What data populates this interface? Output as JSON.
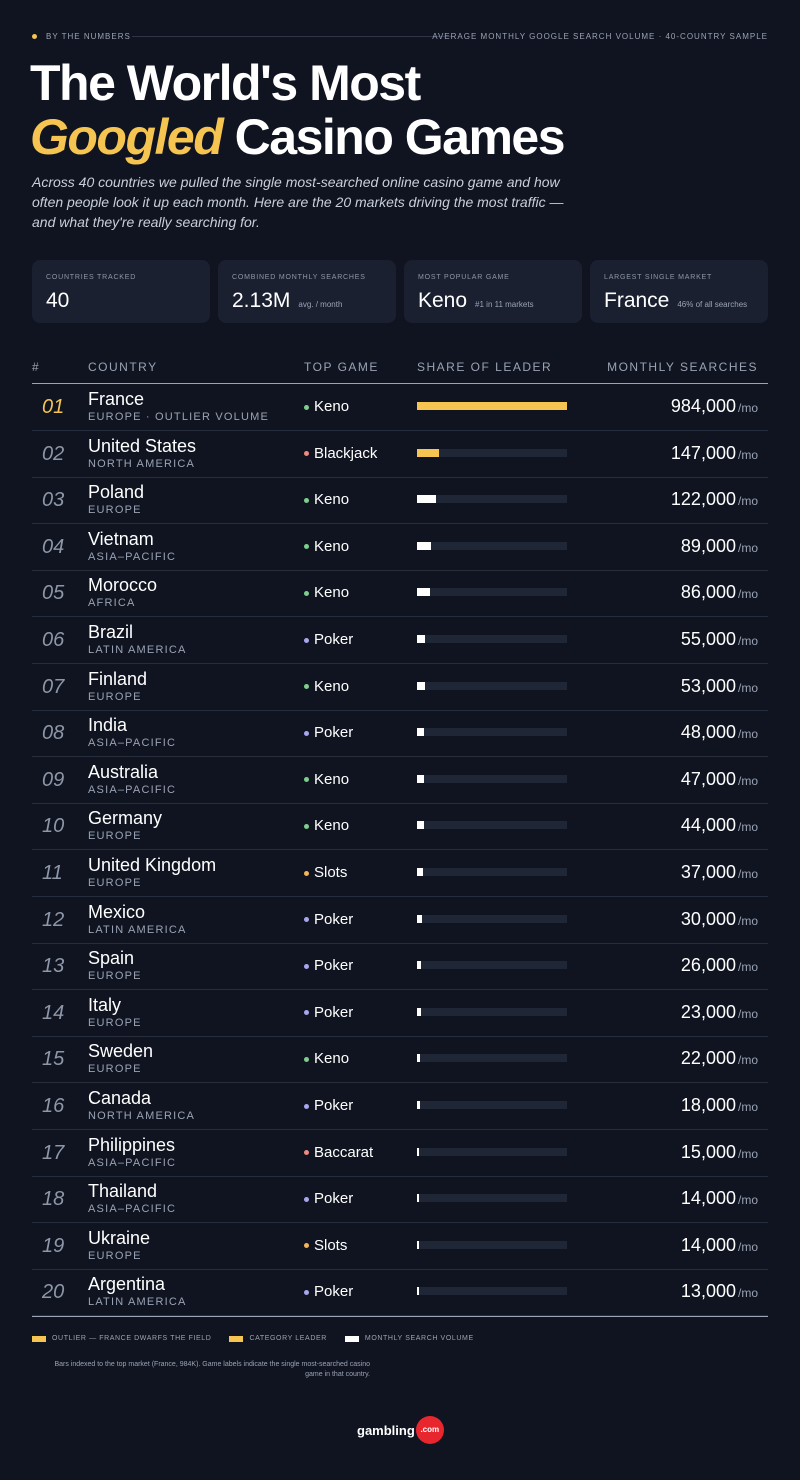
{
  "header": {
    "kicker": "BY THE NUMBERS",
    "meta": "AVERAGE MONTHLY GOOGLE SEARCH VOLUME · 40-COUNTRY SAMPLE"
  },
  "title": {
    "line1": "The World's Most",
    "highlight": "Googled",
    "rest": "Casino Games"
  },
  "description": "Across 40 countries we pulled the single most-searched online casino game and how often people look it up each month. Here are the 20 markets driving the most traffic — and what they're really searching for.",
  "stats": [
    {
      "label": "COUNTRIES TRACKED",
      "value": "40",
      "sub": ""
    },
    {
      "label": "COMBINED MONTHLY SEARCHES",
      "value": "2.13M",
      "sub": "avg. / month"
    },
    {
      "label": "MOST POPULAR GAME",
      "value": "Keno",
      "sub": "#1 in 11 markets"
    },
    {
      "label": "LARGEST SINGLE MARKET",
      "value": "France",
      "sub": "46% of all searches"
    }
  ],
  "table": {
    "headers": [
      "#",
      "COUNTRY",
      "TOP GAME",
      "SHARE OF LEADER",
      "MONTHLY SEARCHES"
    ],
    "unit": "/mo",
    "game_colors": {
      "Keno": "#7fcf8c",
      "Blackjack": "#f08a80",
      "Baccarat": "#f08a80",
      "Poker": "#a9a6f0",
      "Slots": "#f3b45a"
    },
    "rows": [
      {
        "rank": "01",
        "country": "France",
        "region": "EUROPE · OUTLIER VOLUME",
        "game": "Keno",
        "searches": 984000,
        "label": "984,000",
        "bar_color": "#f5c451"
      },
      {
        "rank": "02",
        "country": "United States",
        "region": "NORTH AMERICA",
        "game": "Blackjack",
        "searches": 147000,
        "label": "147,000",
        "bar_color": "#f5c451"
      },
      {
        "rank": "03",
        "country": "Poland",
        "region": "EUROPE",
        "game": "Keno",
        "searches": 122000,
        "label": "122,000",
        "bar_color": "#ffffff"
      },
      {
        "rank": "04",
        "country": "Vietnam",
        "region": "ASIA–PACIFIC",
        "game": "Keno",
        "searches": 89000,
        "label": "89,000",
        "bar_color": "#ffffff"
      },
      {
        "rank": "05",
        "country": "Morocco",
        "region": "AFRICA",
        "game": "Keno",
        "searches": 86000,
        "label": "86,000",
        "bar_color": "#ffffff"
      },
      {
        "rank": "06",
        "country": "Brazil",
        "region": "LATIN AMERICA",
        "game": "Poker",
        "searches": 55000,
        "label": "55,000",
        "bar_color": "#ffffff"
      },
      {
        "rank": "07",
        "country": "Finland",
        "region": "EUROPE",
        "game": "Keno",
        "searches": 53000,
        "label": "53,000",
        "bar_color": "#ffffff"
      },
      {
        "rank": "08",
        "country": "India",
        "region": "ASIA–PACIFIC",
        "game": "Poker",
        "searches": 48000,
        "label": "48,000",
        "bar_color": "#ffffff"
      },
      {
        "rank": "09",
        "country": "Australia",
        "region": "ASIA–PACIFIC",
        "game": "Keno",
        "searches": 47000,
        "label": "47,000",
        "bar_color": "#ffffff"
      },
      {
        "rank": "10",
        "country": "Germany",
        "region": "EUROPE",
        "game": "Keno",
        "searches": 44000,
        "label": "44,000",
        "bar_color": "#ffffff"
      },
      {
        "rank": "11",
        "country": "United Kingdom",
        "region": "EUROPE",
        "game": "Slots",
        "searches": 37000,
        "label": "37,000",
        "bar_color": "#ffffff"
      },
      {
        "rank": "12",
        "country": "Mexico",
        "region": "LATIN AMERICA",
        "game": "Poker",
        "searches": 30000,
        "label": "30,000",
        "bar_color": "#ffffff"
      },
      {
        "rank": "13",
        "country": "Spain",
        "region": "EUROPE",
        "game": "Poker",
        "searches": 26000,
        "label": "26,000",
        "bar_color": "#ffffff"
      },
      {
        "rank": "14",
        "country": "Italy",
        "region": "EUROPE",
        "game": "Poker",
        "searches": 23000,
        "label": "23,000",
        "bar_color": "#ffffff"
      },
      {
        "rank": "15",
        "country": "Sweden",
        "region": "EUROPE",
        "game": "Keno",
        "searches": 22000,
        "label": "22,000",
        "bar_color": "#ffffff"
      },
      {
        "rank": "16",
        "country": "Canada",
        "region": "NORTH AMERICA",
        "game": "Poker",
        "searches": 18000,
        "label": "18,000",
        "bar_color": "#ffffff"
      },
      {
        "rank": "17",
        "country": "Philippines",
        "region": "ASIA–PACIFIC",
        "game": "Baccarat",
        "searches": 15000,
        "label": "15,000",
        "bar_color": "#ffffff"
      },
      {
        "rank": "18",
        "country": "Thailand",
        "region": "ASIA–PACIFIC",
        "game": "Poker",
        "searches": 14000,
        "label": "14,000",
        "bar_color": "#ffffff"
      },
      {
        "rank": "19",
        "country": "Ukraine",
        "region": "EUROPE",
        "game": "Slots",
        "searches": 14000,
        "label": "14,000",
        "bar_color": "#ffffff"
      },
      {
        "rank": "20",
        "country": "Argentina",
        "region": "LATIN AMERICA",
        "game": "Poker",
        "searches": 13000,
        "label": "13,000",
        "bar_color": "#ffffff"
      }
    ]
  },
  "legend": [
    {
      "label": "OUTLIER — FRANCE DWARFS THE FIELD",
      "color": "#f5c451"
    },
    {
      "label": "CATEGORY LEADER",
      "color": "#f5c451"
    },
    {
      "label": "MONTHLY SEARCH VOLUME",
      "color": "#ffffff"
    }
  ],
  "note": "Bars indexed to the top market (France, 984K). Game labels indicate the single most-searched casino game in that country.",
  "logo": {
    "name": "gambling",
    "suffix": ".com"
  }
}
